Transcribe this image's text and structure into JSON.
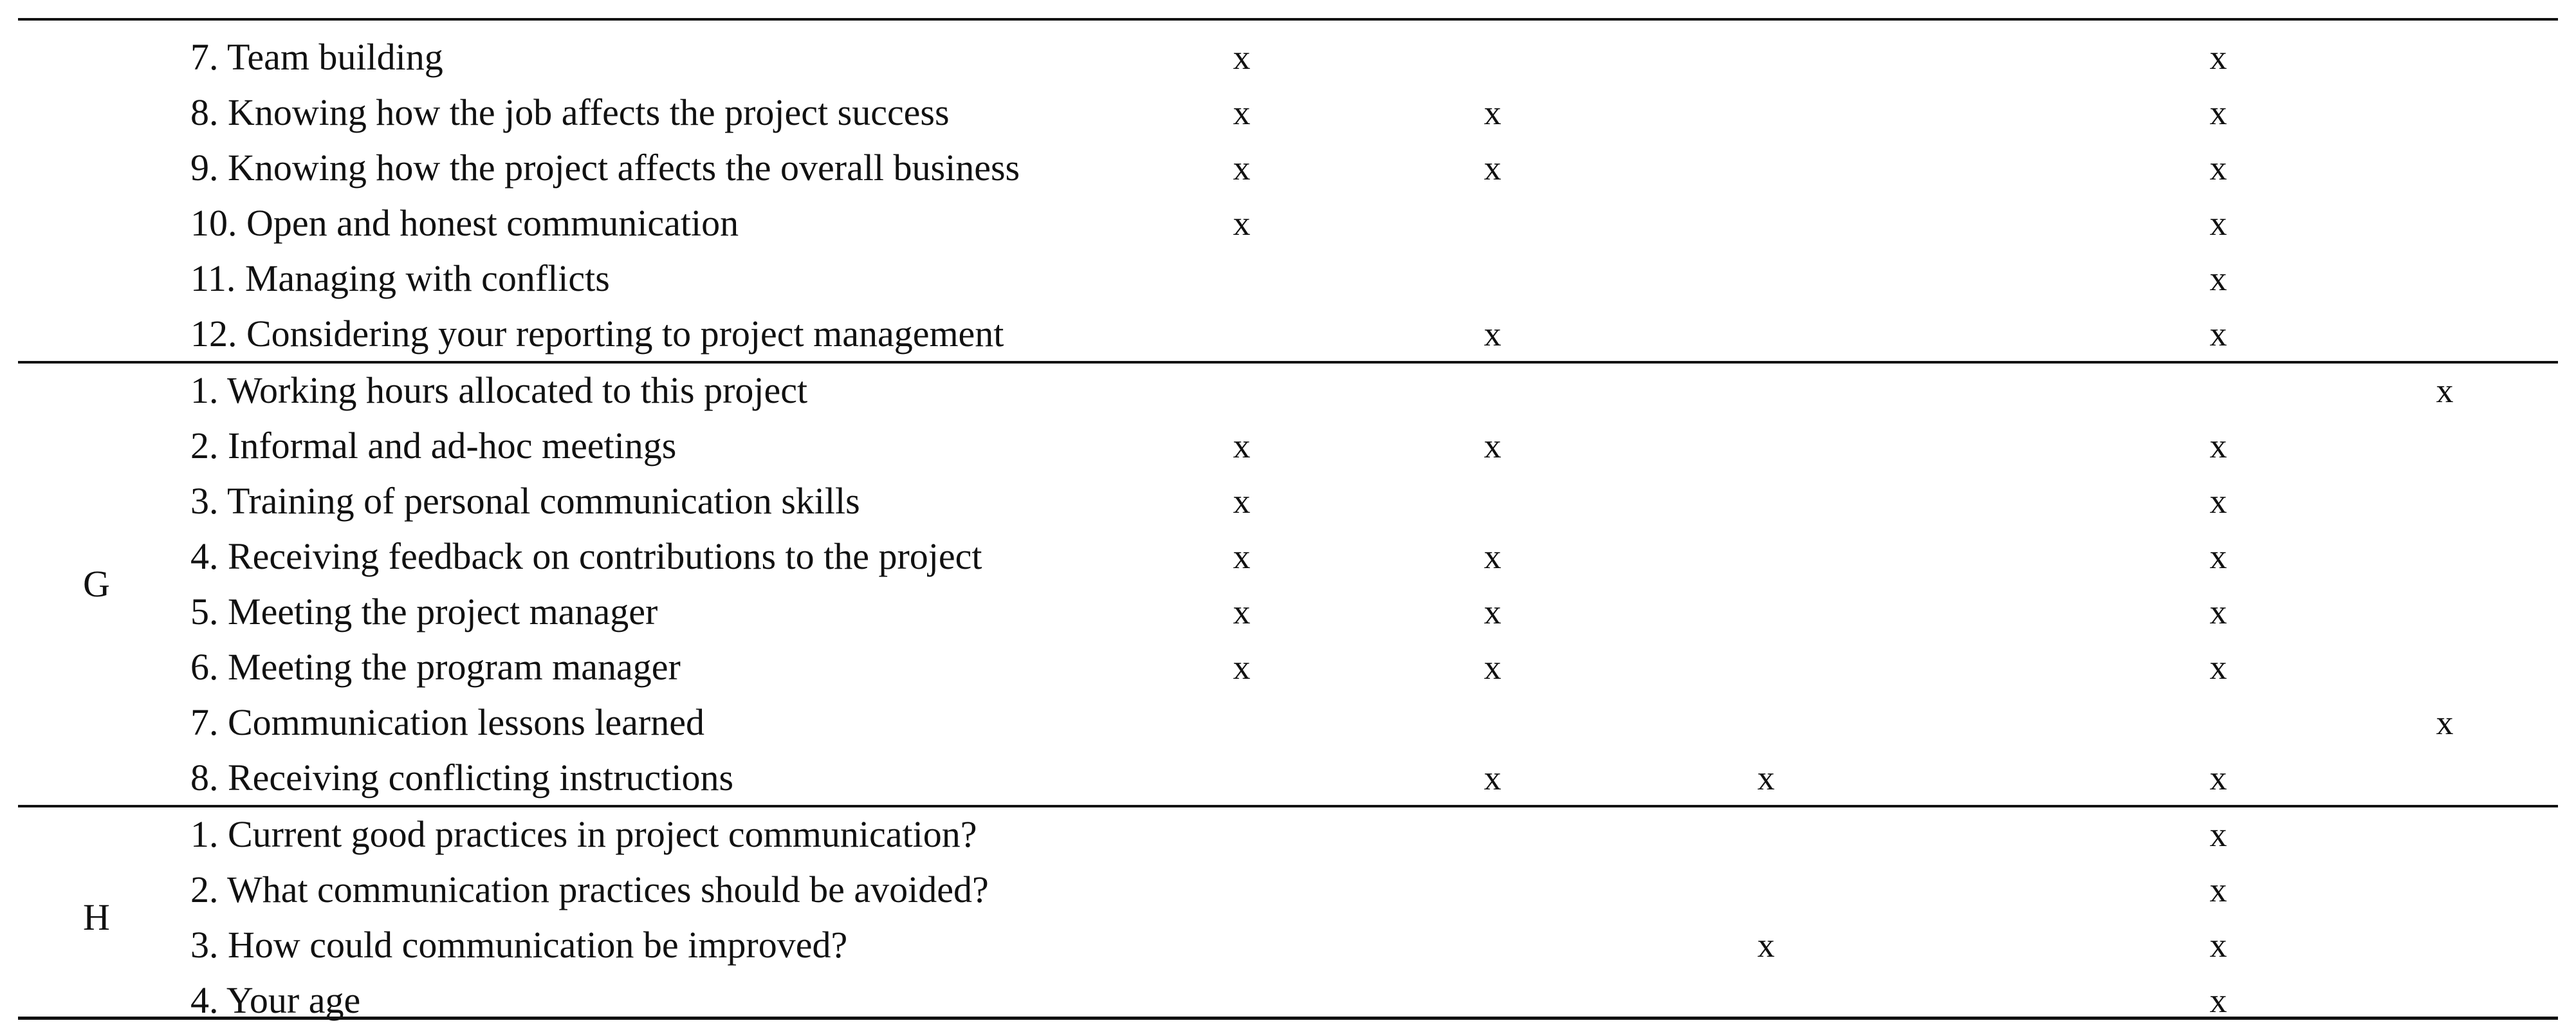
{
  "table": {
    "sections": [
      {
        "group": "",
        "rows": [
          {
            "item": "7. Team building",
            "marks": [
              "x",
              "",
              "",
              "x",
              ""
            ]
          },
          {
            "item": "8. Knowing how the job affects the project success",
            "marks": [
              "x",
              "x",
              "",
              "x",
              ""
            ]
          },
          {
            "item": "9. Knowing how the project affects the overall business",
            "marks": [
              "x",
              "x",
              "",
              "x",
              ""
            ]
          },
          {
            "item": "10. Open and honest communication",
            "marks": [
              "x",
              "",
              "",
              "x",
              ""
            ]
          },
          {
            "item": "11. Managing with conflicts",
            "marks": [
              "",
              "",
              "",
              "x",
              ""
            ]
          },
          {
            "item": "12. Considering your reporting to project management",
            "marks": [
              "",
              "x",
              "",
              "x",
              ""
            ]
          }
        ]
      },
      {
        "group": "G",
        "rows": [
          {
            "item": "1. Working hours allocated to this project",
            "marks": [
              "",
              "",
              "",
              "",
              "x"
            ]
          },
          {
            "item": "2. Informal and ad-hoc meetings",
            "marks": [
              "x",
              "x",
              "",
              "x",
              ""
            ]
          },
          {
            "item": "3. Training of personal communication skills",
            "marks": [
              "x",
              "",
              "",
              "x",
              ""
            ]
          },
          {
            "item": "4. Receiving feedback on contributions to the project",
            "marks": [
              "x",
              "x",
              "",
              "x",
              ""
            ]
          },
          {
            "item": "5. Meeting the project manager",
            "marks": [
              "x",
              "x",
              "",
              "x",
              ""
            ]
          },
          {
            "item": "6. Meeting the program manager",
            "marks": [
              "x",
              "x",
              "",
              "x",
              ""
            ]
          },
          {
            "item": "7. Communication lessons learned",
            "marks": [
              "",
              "",
              "",
              "",
              "x"
            ]
          },
          {
            "item": "8. Receiving conflicting instructions",
            "marks": [
              "",
              "x",
              "x",
              "x",
              ""
            ]
          }
        ]
      },
      {
        "group": "H",
        "rows": [
          {
            "item": "1. Current good practices in project communication?",
            "marks": [
              "",
              "",
              "",
              "x",
              ""
            ]
          },
          {
            "item": "2. What communication practices should be avoided?",
            "marks": [
              "",
              "",
              "",
              "x",
              ""
            ]
          },
          {
            "item": "3. How could communication be improved?",
            "marks": [
              "",
              "",
              "x",
              "x",
              ""
            ]
          },
          {
            "item": "4. Your age",
            "marks": [
              "",
              "",
              "",
              "x",
              ""
            ]
          }
        ]
      }
    ]
  }
}
